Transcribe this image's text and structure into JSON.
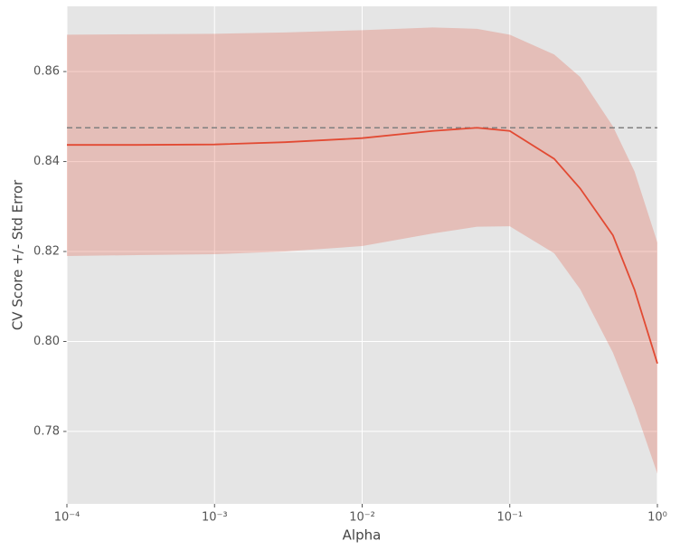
{
  "chart_data": {
    "type": "band-line",
    "xlabel": "Alpha",
    "ylabel": "CV Score +/- Std Error",
    "log_x": true,
    "grid": true,
    "color": "#e24a33",
    "band_color": "#e24a33",
    "hline_color": "#808080",
    "x": [
      0.0001,
      0.0003,
      0.001,
      0.003,
      0.01,
      0.03,
      0.06,
      0.1,
      0.2,
      0.3,
      0.5,
      0.7,
      1
    ],
    "values": [
      0.8437,
      0.8437,
      0.8438,
      0.8443,
      0.8452,
      0.8468,
      0.8475,
      0.8468,
      0.8406,
      0.834,
      0.8236,
      0.8115,
      0.7951
    ],
    "upper": [
      0.8682,
      0.8683,
      0.8684,
      0.8687,
      0.8692,
      0.8698,
      0.8695,
      0.8682,
      0.8638,
      0.8588,
      0.8478,
      0.8378,
      0.822
    ],
    "lower": [
      0.819,
      0.8192,
      0.8194,
      0.82,
      0.8212,
      0.824,
      0.8255,
      0.8256,
      0.8196,
      0.8116,
      0.7975,
      0.7854,
      0.7706
    ],
    "hline": 0.8475,
    "xlim": [
      0.0001,
      1
    ],
    "xticks": [
      {
        "value": 0.0001,
        "label": "10⁻⁴"
      },
      {
        "value": 0.001,
        "label": "10⁻³"
      },
      {
        "value": 0.01,
        "label": "10⁻²"
      },
      {
        "value": 0.1,
        "label": "10⁻¹"
      },
      {
        "value": 1,
        "label": "10⁰"
      }
    ],
    "ylim": [
      0.7639,
      0.8745
    ],
    "yticks": [
      0.78,
      {
        "value": 0.8,
        "label": "0.80"
      },
      0.82,
      0.84,
      0.86
    ]
  }
}
